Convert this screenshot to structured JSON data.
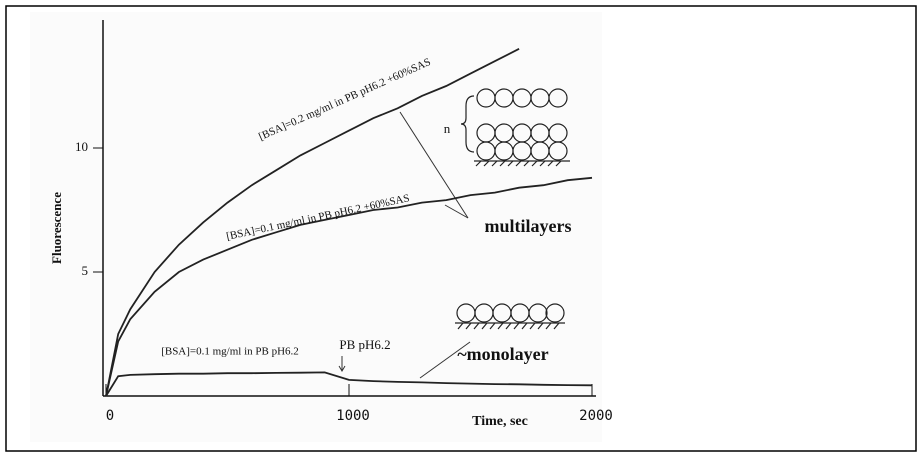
{
  "chart_data": {
    "type": "line",
    "ylabel": "Fluorescence",
    "xlabel": "Time, sec",
    "x": [
      0,
      50,
      100,
      200,
      300,
      400,
      500,
      600,
      700,
      800,
      900,
      1000,
      1100,
      1200,
      1300,
      1400,
      1500,
      1600,
      1700,
      1800,
      1900,
      2000
    ],
    "series": [
      {
        "name": "[BSA]=0.2 mg/ml in PB pH6.2 +60%SAS",
        "color": "#222222",
        "values": [
          0,
          2.5,
          3.5,
          5.0,
          6.1,
          7.0,
          7.8,
          8.5,
          9.1,
          9.7,
          10.2,
          10.7,
          11.2,
          11.6,
          12.1,
          12.5,
          13.0,
          13.5,
          14.0,
          null,
          null,
          null
        ]
      },
      {
        "name": "[BSA]=0.1 mg/ml in PB pH6.2 +60%SAS",
        "color": "#222222",
        "values": [
          0,
          2.2,
          3.1,
          4.2,
          5.0,
          5.5,
          5.9,
          6.3,
          6.6,
          6.9,
          7.1,
          7.3,
          7.5,
          7.6,
          7.8,
          7.9,
          8.1,
          8.2,
          8.4,
          8.5,
          8.7,
          8.8
        ]
      },
      {
        "name": "[BSA]=0.1 mg/ml in PB pH6.2",
        "color": "#222222",
        "values": [
          0,
          0.8,
          0.85,
          0.88,
          0.9,
          0.9,
          0.92,
          0.92,
          0.93,
          0.94,
          0.95,
          0.65,
          0.6,
          0.57,
          0.55,
          0.52,
          0.5,
          0.48,
          0.47,
          0.45,
          0.44,
          0.43
        ]
      }
    ],
    "annotations": [
      "PB pH6.2",
      "multilayers",
      "~monolayer",
      "n"
    ],
    "xlim": [
      0,
      2000
    ],
    "xticks": [
      0,
      1000,
      2000
    ],
    "ylim": [
      0,
      15
    ],
    "yticks": [
      5,
      10
    ],
    "grid": false
  }
}
